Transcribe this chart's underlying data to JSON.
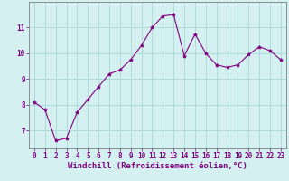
{
  "x": [
    0,
    1,
    2,
    3,
    4,
    5,
    6,
    7,
    8,
    9,
    10,
    11,
    12,
    13,
    14,
    15,
    16,
    17,
    18,
    19,
    20,
    21,
    22,
    23
  ],
  "y": [
    8.1,
    7.8,
    6.6,
    6.7,
    7.7,
    8.2,
    8.7,
    9.2,
    9.35,
    9.75,
    10.3,
    11.0,
    11.45,
    11.5,
    9.9,
    10.75,
    10.0,
    9.55,
    9.45,
    9.55,
    9.95,
    10.25,
    10.1,
    9.75
  ],
  "line_color": "#800080",
  "marker": "*",
  "marker_size": 3,
  "bg_color": "#d4f0f0",
  "grid_color": "#a8d8d8",
  "xlabel": "Windchill (Refroidissement éolien,°C)",
  "xlim": [
    -0.5,
    23.5
  ],
  "ylim": [
    6.3,
    12.0
  ],
  "yticks": [
    7,
    8,
    9,
    10,
    11
  ],
  "xticks": [
    0,
    1,
    2,
    3,
    4,
    5,
    6,
    7,
    8,
    9,
    10,
    11,
    12,
    13,
    14,
    15,
    16,
    17,
    18,
    19,
    20,
    21,
    22,
    23
  ],
  "tick_fontsize": 5.5,
  "xlabel_fontsize": 6.5,
  "spine_color": "#808080"
}
